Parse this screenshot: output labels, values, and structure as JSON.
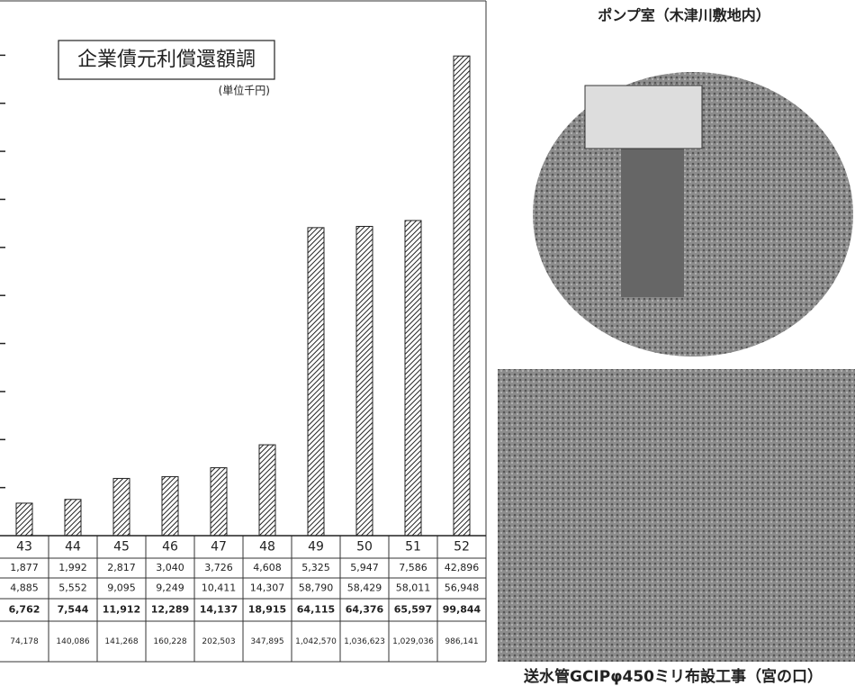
{
  "chart_data": {
    "type": "bar",
    "title": "企業債元利償還額調",
    "unit": "(単位千円)",
    "categories": [
      "43",
      "44",
      "45",
      "46",
      "47",
      "48",
      "49",
      "50",
      "51",
      "52"
    ],
    "values": [
      6762,
      7544,
      11912,
      12289,
      14137,
      18915,
      64115,
      64376,
      65597,
      99844
    ],
    "value_labels": [
      "6,762",
      "7,544",
      "11,912",
      "12,289",
      "14,137",
      "18,915",
      "64,115",
      "64,376",
      "65,597",
      "99,844"
    ],
    "ylim": [
      0,
      110000
    ],
    "yticks": [
      10000,
      20000,
      30000,
      40000,
      50000,
      60000,
      70000,
      80000,
      90000,
      100000
    ]
  },
  "table": {
    "rows": [
      [
        "1,877",
        "1,992",
        "2,817",
        "3,040",
        "3,726",
        "4,608",
        "5,325",
        "5,947",
        "7,586",
        "42,896"
      ],
      [
        "4,885",
        "5,552",
        "9,095",
        "9,249",
        "10,411",
        "14,307",
        "58,790",
        "58,429",
        "58,011",
        "56,948"
      ],
      [
        "74,178",
        "140,086",
        "141,268",
        "160,228",
        "202,503",
        "347,895",
        "1,042,570",
        "1,036,623",
        "1,029,036",
        "986,141"
      ]
    ]
  },
  "photos": {
    "top_caption": "ポンプ室（木津川敷地内）",
    "bottom_caption": "送水管GCIPφ450ミリ布設工事（宮の口）"
  }
}
